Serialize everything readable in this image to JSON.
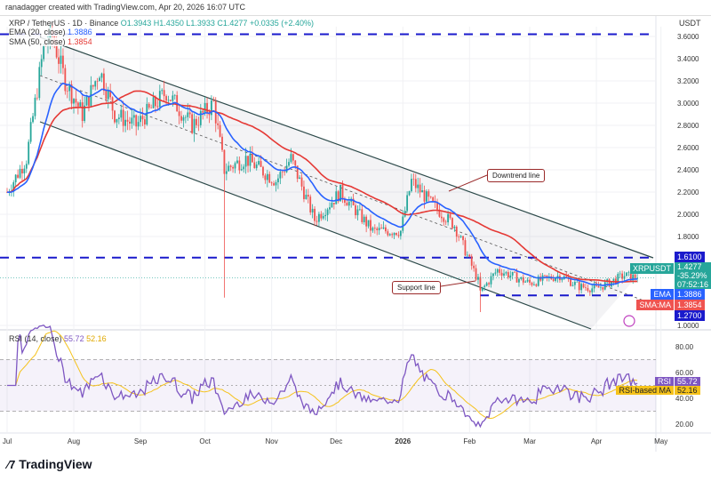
{
  "header": {
    "credit": "ranadagger created with TradingView.com, Apr 20, 2026 16:07 UTC",
    "symbol": "XRP / TetherUS · 1D · Binance",
    "open": "O1.3943",
    "high": "H1.4350",
    "low": "L1.3933",
    "close": "C1.4277",
    "change": "+0.0335 (+2.40%)",
    "ema_label": "EMA (20, close)",
    "ema_value": "1.3886",
    "sma_label": "SMA (50, close)",
    "sma_value": "1.3854",
    "rsi_label": "RSI (14, close)",
    "rsi_value": "55.72",
    "rsi_ma_value": "52.16"
  },
  "axis": {
    "currency": "USDT",
    "price_ticks": [
      "3.6000",
      "3.4000",
      "3.2000",
      "3.0000",
      "2.8000",
      "2.6000",
      "2.4000",
      "2.2000",
      "2.0000",
      "1.8000",
      "1.0000"
    ],
    "rsi_ticks": [
      "80.00",
      "60.00",
      "40.00",
      "20.00"
    ],
    "time_ticks": [
      "Jul",
      "Aug",
      "Sep",
      "Oct",
      "Nov",
      "Dec",
      "2026",
      "Feb",
      "Mar",
      "Apr",
      "May"
    ]
  },
  "badges": {
    "resistance": "1.6100",
    "ticker": "XRPUSDT",
    "price": "1.4277",
    "pct": "-35.29%",
    "countdown": "07:52:16",
    "ema": "EMA",
    "ema_val": "1.3886",
    "sma": "SMA:MA",
    "sma_val": "1.3854",
    "support": "1.2700",
    "rsi": "RSI",
    "rsi_val": "55.72",
    "rsi_ma": "RSI-based MA",
    "rsi_ma_val": "52.16"
  },
  "annotations": {
    "downtrend": "Downtrend line",
    "support": "Support line"
  },
  "footer": {
    "logo": "TradingView"
  },
  "colors": {
    "up": "#26a69a",
    "down": "#ef5350",
    "ema": "#2962ff",
    "sma": "#e53935",
    "rsi": "#7e57c2",
    "rsi_ma": "#f5c21b",
    "levels": "#1a1acc"
  },
  "chart_data": {
    "type": "candlestick",
    "title": "XRP / TetherUS · 1D · Binance",
    "ylim": [
      1.0,
      3.7
    ],
    "levels": [
      3.62,
      1.61,
      1.27
    ],
    "close_anchors": [
      [
        "2025-07-01",
        2.2
      ],
      [
        "2025-07-10",
        2.5
      ],
      [
        "2025-07-18",
        3.5
      ],
      [
        "2025-07-22",
        3.6
      ],
      [
        "2025-07-28",
        3.2
      ],
      [
        "2025-08-05",
        2.9
      ],
      [
        "2025-08-13",
        3.3
      ],
      [
        "2025-08-20",
        2.9
      ],
      [
        "2025-08-30",
        2.8
      ],
      [
        "2025-09-13",
        3.1
      ],
      [
        "2025-09-25",
        2.8
      ],
      [
        "2025-10-05",
        3.0
      ],
      [
        "2025-10-10",
        2.4
      ],
      [
        "2025-10-20",
        2.5
      ],
      [
        "2025-11-03",
        2.3
      ],
      [
        "2025-11-10",
        2.5
      ],
      [
        "2025-11-21",
        1.95
      ],
      [
        "2025-12-03",
        2.2
      ],
      [
        "2025-12-18",
        1.85
      ],
      [
        "2025-12-31",
        1.85
      ],
      [
        "2026-01-05",
        2.3
      ],
      [
        "2026-01-14",
        2.1
      ],
      [
        "2026-01-25",
        1.9
      ],
      [
        "2026-02-05",
        1.4
      ],
      [
        "2026-02-06",
        1.3
      ],
      [
        "2026-02-14",
        1.5
      ],
      [
        "2026-03-01",
        1.38
      ],
      [
        "2026-03-15",
        1.45
      ],
      [
        "2026-03-24",
        1.35
      ],
      [
        "2026-04-01",
        1.33
      ],
      [
        "2026-04-14",
        1.45
      ],
      [
        "2026-04-20",
        1.4277
      ]
    ]
  }
}
